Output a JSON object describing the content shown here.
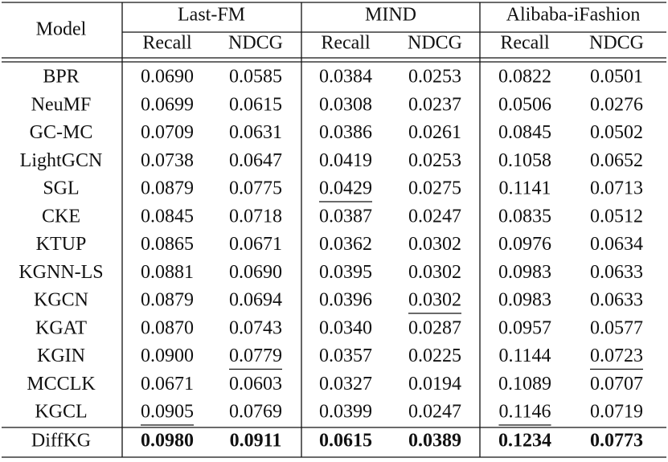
{
  "table": {
    "model_header": "Model",
    "groups": [
      "Last-FM",
      "MIND",
      "Alibaba-iFashion"
    ],
    "metrics": [
      "Recall",
      "NDCG",
      "Recall",
      "NDCG",
      "Recall",
      "NDCG"
    ],
    "rows": [
      [
        "BPR",
        "0.0690",
        "0.0585",
        "0.0384",
        "0.0253",
        "0.0822",
        "0.0501"
      ],
      [
        "NeuMF",
        "0.0699",
        "0.0615",
        "0.0308",
        "0.0237",
        "0.0506",
        "0.0276"
      ],
      [
        "GC-MC",
        "0.0709",
        "0.0631",
        "0.0386",
        "0.0261",
        "0.0845",
        "0.0502"
      ],
      [
        "LightGCN",
        "0.0738",
        "0.0647",
        "0.0419",
        "0.0253",
        "0.1058",
        "0.0652"
      ],
      [
        "SGL",
        "0.0879",
        "0.0775",
        "0.0429",
        "0.0275",
        "0.1141",
        "0.0713"
      ],
      [
        "CKE",
        "0.0845",
        "0.0718",
        "0.0387",
        "0.0247",
        "0.0835",
        "0.0512"
      ],
      [
        "KTUP",
        "0.0865",
        "0.0671",
        "0.0362",
        "0.0302",
        "0.0976",
        "0.0634"
      ],
      [
        "KGNN-LS",
        "0.0881",
        "0.0690",
        "0.0395",
        "0.0302",
        "0.0983",
        "0.0633"
      ],
      [
        "KGCN",
        "0.0879",
        "0.0694",
        "0.0396",
        "0.0302",
        "0.0983",
        "0.0633"
      ],
      [
        "KGAT",
        "0.0870",
        "0.0743",
        "0.0340",
        "0.0287",
        "0.0957",
        "0.0577"
      ],
      [
        "KGIN",
        "0.0900",
        "0.0779",
        "0.0357",
        "0.0225",
        "0.1144",
        "0.0723"
      ],
      [
        "MCCLK",
        "0.0671",
        "0.0603",
        "0.0327",
        "0.0194",
        "0.1089",
        "0.0707"
      ],
      [
        "KGCL",
        "0.0905",
        "0.0769",
        "0.0399",
        "0.0247",
        "0.1146",
        "0.0719"
      ],
      [
        "DiffKG",
        "0.0980",
        "0.0911",
        "0.0615",
        "0.0389",
        "0.1234",
        "0.0773"
      ]
    ],
    "underlined": [
      [
        4,
        3
      ],
      [
        8,
        4
      ],
      [
        10,
        2
      ],
      [
        10,
        6
      ],
      [
        12,
        1
      ],
      [
        12,
        5
      ]
    ],
    "bold_last_row": true
  }
}
